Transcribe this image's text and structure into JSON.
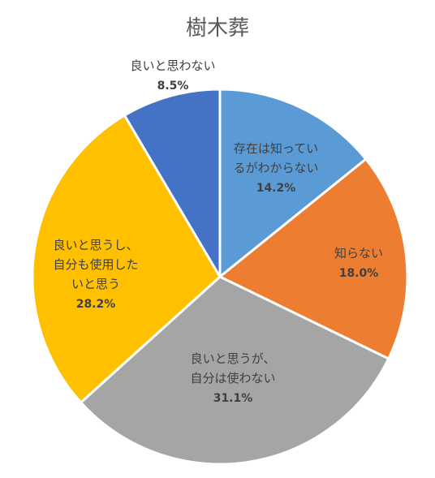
{
  "chart_data": {
    "type": "pie",
    "title": "樹木葬",
    "slices": [
      {
        "label_lines": [
          "存在は知ってい",
          "るがわからない"
        ],
        "value": 14.2,
        "value_label": "14.2%",
        "color": "#5B9BD5"
      },
      {
        "label_lines": [
          "知らない"
        ],
        "value": 18.0,
        "value_label": "18.0%",
        "color": "#ED7D31"
      },
      {
        "label_lines": [
          "良いと思うが、",
          "自分は使わない"
        ],
        "value": 31.1,
        "value_label": "31.1%",
        "color": "#A5A5A5"
      },
      {
        "label_lines": [
          "良いと思うし、",
          "自分も使用した",
          "いと思う"
        ],
        "value": 28.2,
        "value_label": "28.2%",
        "color": "#FFC000"
      },
      {
        "label_lines": [
          "良いと思わない"
        ],
        "value": 8.5,
        "value_label": "8.5%",
        "color": "#4472C4"
      }
    ],
    "start": "12 o'clock",
    "direction": "clockwise"
  }
}
